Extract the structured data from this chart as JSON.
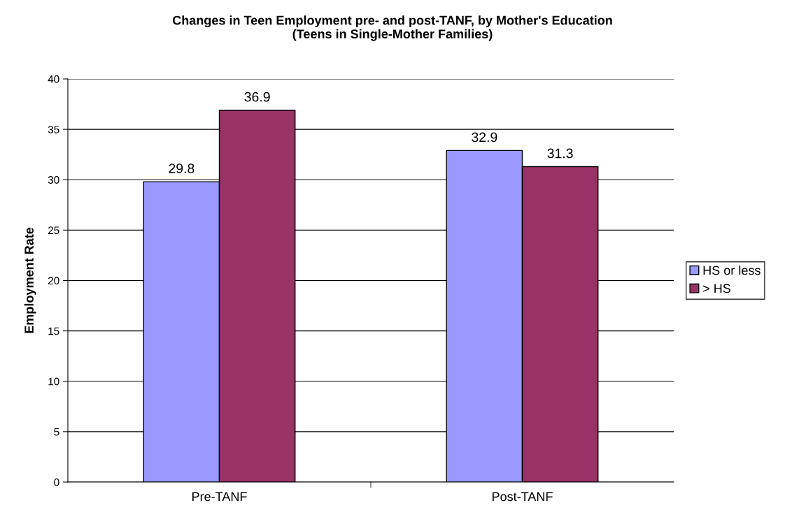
{
  "chart_data": {
    "type": "bar",
    "title": "Changes in Teen Employment pre- and post-TANF, by Mother's Education\n(Teens in Single-Mother Families)",
    "ylabel": "Employment Rate",
    "categories": [
      "Pre-TANF",
      "Post-TANF"
    ],
    "series": [
      {
        "name": "HS or less",
        "color": "#9999ff",
        "values": [
          29.8,
          32.9
        ]
      },
      {
        "name": "> HS",
        "color": "#993366",
        "values": [
          36.9,
          31.3
        ]
      }
    ],
    "ylim": [
      0,
      40
    ],
    "yticks": [
      0,
      5,
      10,
      15,
      20,
      25,
      30,
      35,
      40
    ],
    "grid": "y",
    "legend": "right",
    "data_labels": true
  }
}
